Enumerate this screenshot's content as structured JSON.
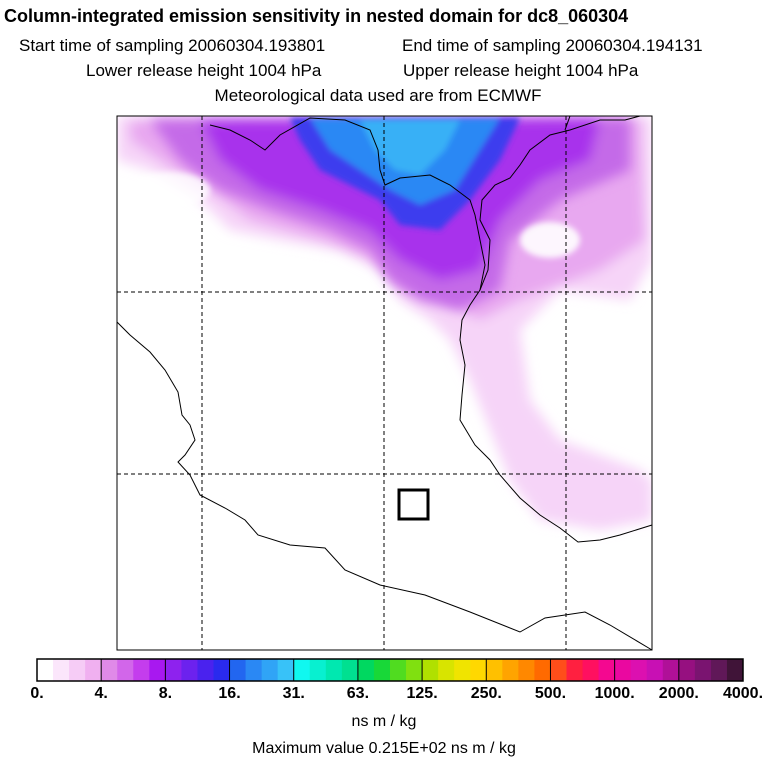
{
  "header": {
    "title": "Column-integrated emission sensitivity in nested domain for dc8_060304",
    "start_label": "Start time of sampling 20060304.193801",
    "end_label": "End time of sampling 20060304.194131",
    "lower_label": "Lower release height 1004 hPa",
    "upper_label": "Upper release height 1004 hPa",
    "met_label": "Meteorological data used are from ECMWF"
  },
  "colorbar": {
    "labels": [
      "0.",
      "4.",
      "8.",
      "16.",
      "31.",
      "63.",
      "125.",
      "250.",
      "500.",
      "1000.",
      "2000.",
      "4000."
    ],
    "colors": [
      "#ffffff",
      "#fbe6fb",
      "#f6ccf6",
      "#f0b0f0",
      "#e08ae8",
      "#d266ea",
      "#c43ded",
      "#a818f0",
      "#8e22ee",
      "#6c22ee",
      "#4a22ee",
      "#2a2aee",
      "#2266f0",
      "#2a88f4",
      "#30a4f6",
      "#38c2f8",
      "#10f8f0",
      "#08f0d0",
      "#00e8b0",
      "#00e090",
      "#00d860",
      "#18d838",
      "#50dc20",
      "#80e010",
      "#b0e000",
      "#d8e400",
      "#f0e400",
      "#ffd800",
      "#ffc000",
      "#ffa400",
      "#ff8800",
      "#ff6a00",
      "#ff4e1a",
      "#ff2040",
      "#ff1060",
      "#f40890",
      "#ea08a0",
      "#dc10b0",
      "#c810b4",
      "#b01098",
      "#961080",
      "#7a1470",
      "#601858",
      "#401438"
    ],
    "units": "ns m / kg",
    "max_value_label": "Maximum value  0.215E+02 ns m / kg"
  },
  "map": {
    "grid_lines": "dashed",
    "release_box": "receptor"
  }
}
